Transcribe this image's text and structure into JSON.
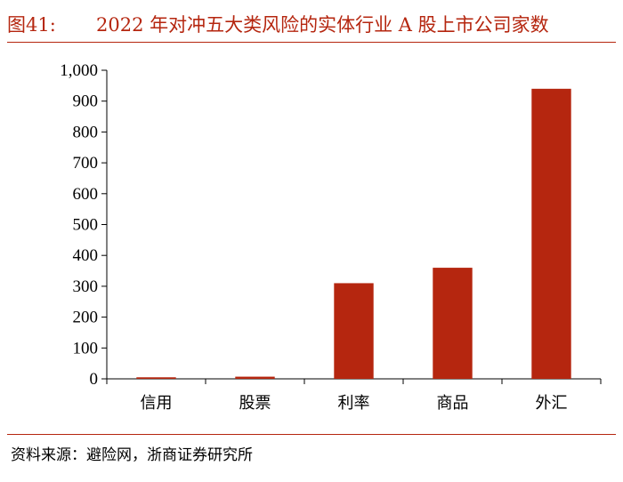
{
  "figure": {
    "label": "图41:",
    "title": "2022 年对冲五大类风险的实体行业 A 股上市公司家数"
  },
  "source": "资料来源：避险网，浙商证券研究所",
  "colors": {
    "accent": "#b5260f",
    "bar": "#b5260f"
  },
  "chart_data": {
    "type": "bar",
    "categories": [
      "信用",
      "股票",
      "利率",
      "商品",
      "外汇"
    ],
    "values": [
      5,
      7,
      310,
      360,
      940
    ],
    "ylim": [
      0,
      1000
    ],
    "yticks": [
      0,
      100,
      200,
      300,
      400,
      500,
      600,
      700,
      800,
      900,
      1000
    ],
    "ytick_labels": [
      "0",
      "100",
      "200",
      "300",
      "400",
      "500",
      "600",
      "700",
      "800",
      "900",
      "1,000"
    ],
    "grid": false,
    "legend": "none"
  }
}
